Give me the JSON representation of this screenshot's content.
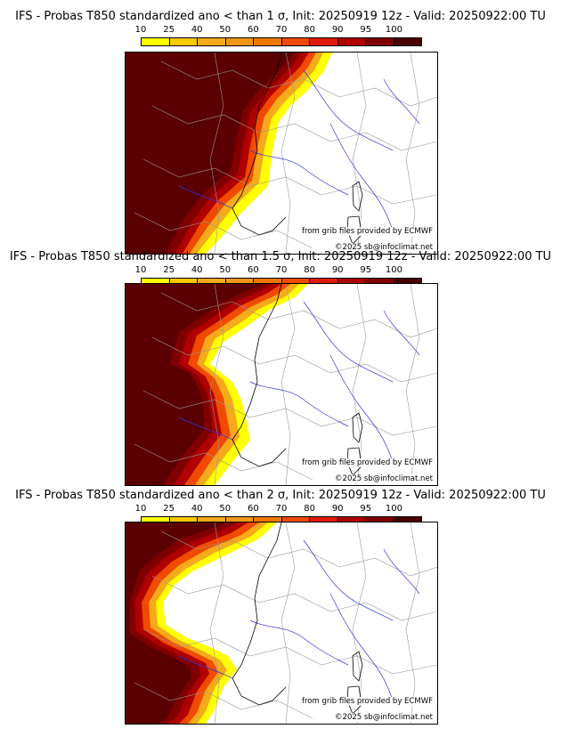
{
  "colorbar": {
    "ticks": [
      "10",
      "25",
      "40",
      "50",
      "60",
      "70",
      "80",
      "90",
      "95",
      "100"
    ],
    "colors": [
      "#ffff00",
      "#f8c800",
      "#f4aa1a",
      "#f2961a",
      "#f07800",
      "#f04a00",
      "#e01a00",
      "#b00000",
      "#800000",
      "#4a0000"
    ]
  },
  "land_color": "#ffffff",
  "border_color": "#999999",
  "river_color": "#3333dd",
  "panels": [
    {
      "title": "IFS - Probas T850  standardized ano < than 1 σ, Init: 20250919 12z - Valid: 20250922:00 TU",
      "credit_source": "from grib files provided by ECMWF",
      "credit_copyright": "©2025 sb@infoclimat.net"
    },
    {
      "title": "IFS - Probas T850  standardized ano < than 1.5 σ, Init: 20250919 12z - Valid: 20250922:00 TU",
      "credit_source": "from grib files provided by ECMWF",
      "credit_copyright": "©2025 sb@infoclimat.net"
    },
    {
      "title": "IFS - Probas T850  standardized ano < than 2 σ, Init: 20250919 12z - Valid: 20250922:00 TU",
      "credit_source": "from grib files provided by ECMWF",
      "credit_copyright": "©2025 sb@infoclimat.net"
    }
  ]
}
